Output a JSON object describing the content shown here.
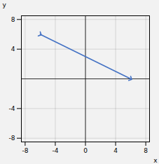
{
  "chart_data": {
    "type": "line",
    "x": [
      -6,
      6
    ],
    "values": [
      6,
      0
    ],
    "color": "#4472c4",
    "marker": "arrow",
    "xlabel": "x",
    "ylabel": "y",
    "xlim": [
      -8.5,
      8.5
    ],
    "ylim": [
      -8.5,
      8.5
    ],
    "xticks": [
      -8,
      -4,
      0,
      4,
      8
    ],
    "yticks": [
      -8,
      -4,
      4,
      8
    ],
    "grid": true
  }
}
